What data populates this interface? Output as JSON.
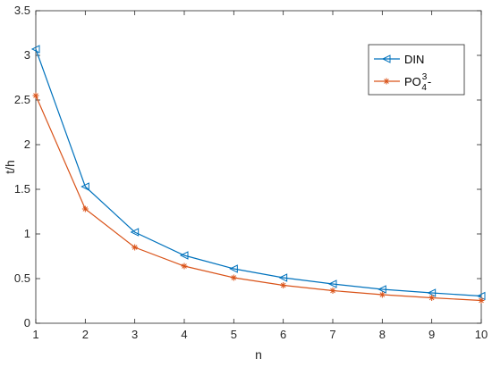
{
  "chart_data": {
    "type": "line",
    "title": "",
    "xlabel": "n",
    "ylabel": "t/h",
    "x": [
      1,
      2,
      3,
      4,
      5,
      6,
      7,
      8,
      9,
      10
    ],
    "xlim": [
      1,
      10
    ],
    "ylim": [
      0,
      3.5
    ],
    "x_ticks": [
      "1",
      "2",
      "3",
      "4",
      "5",
      "6",
      "7",
      "8",
      "9",
      "10"
    ],
    "y_ticks": [
      "0",
      "0.5",
      "1",
      "1.5",
      "2",
      "2.5",
      "3",
      "3.5"
    ],
    "grid": false,
    "legend_position": "top-right",
    "series": [
      {
        "name": "DIN",
        "color": "#0072BD",
        "marker": "triangle-left",
        "values": [
          3.07,
          1.53,
          1.02,
          0.76,
          0.61,
          0.51,
          0.44,
          0.38,
          0.34,
          0.305
        ]
      },
      {
        "name": "PO",
        "name_sup": "3",
        "name_sub": "4",
        "name_suffix": "-",
        "color": "#D95319",
        "marker": "star",
        "values": [
          2.55,
          1.28,
          0.85,
          0.64,
          0.51,
          0.425,
          0.365,
          0.32,
          0.285,
          0.255
        ]
      }
    ]
  }
}
